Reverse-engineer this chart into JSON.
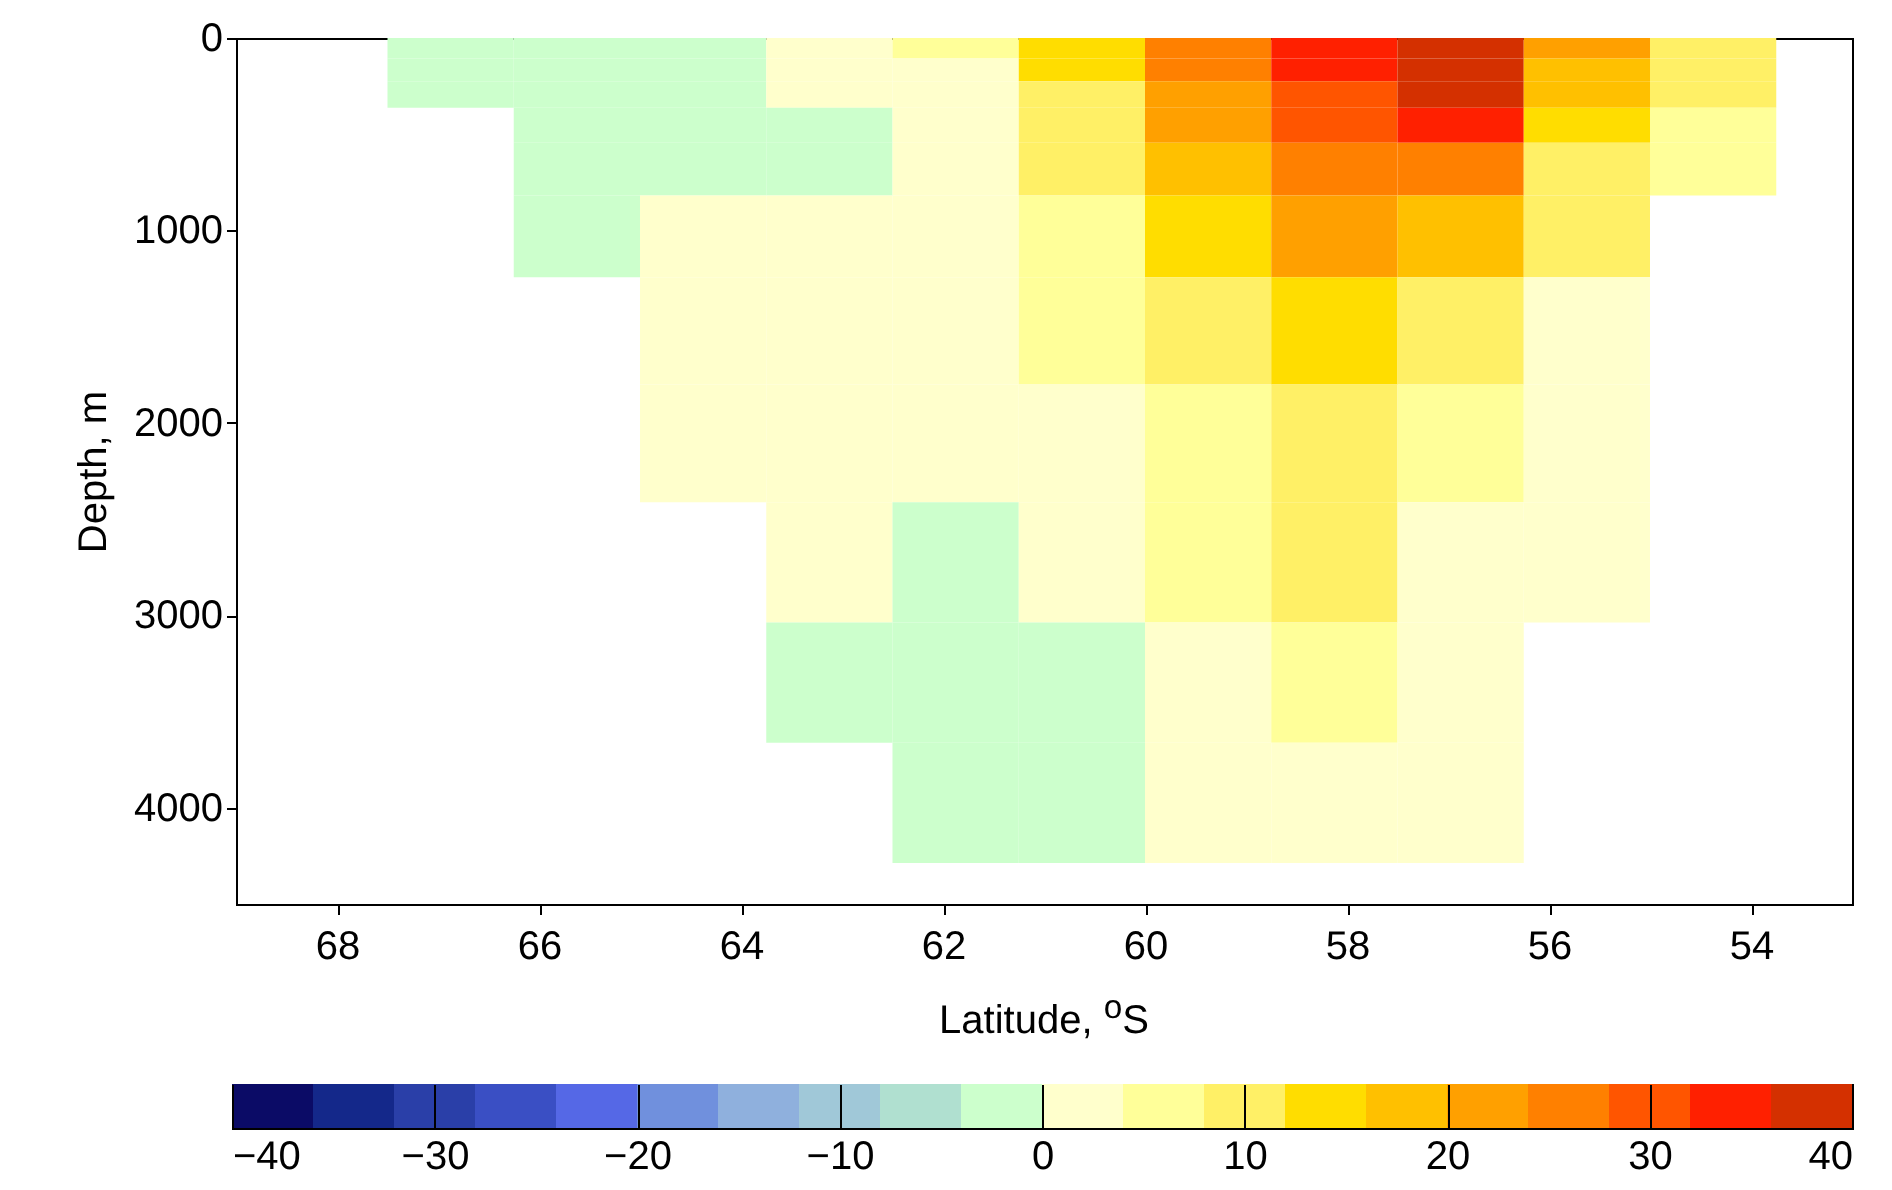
{
  "chart_data": {
    "type": "heatmap",
    "xlabel": "Latitude, $^{o}$S",
    "ylabel": "Depth, m",
    "x": [
      66.875,
      65.625,
      64.375,
      63.125,
      61.875,
      60.625,
      59.375,
      58.125,
      56.875,
      55.625,
      54.375
    ],
    "y": [
      50,
      162.5,
      287.5,
      437.5,
      650,
      987.5,
      1500,
      2100,
      2725,
      3350,
      3975
    ],
    "xlim": [
      69,
      53
    ],
    "xticks": [
      68,
      66,
      64,
      62,
      60,
      58,
      56,
      54
    ],
    "ylim": [
      4500,
      0
    ],
    "yticks": [
      0,
      1000,
      2000,
      3000,
      4000
    ],
    "cells": [
      [
        -2,
        -2,
        -2,
        2,
        6,
        14,
        26,
        34,
        38,
        22,
        10
      ],
      [
        -2,
        -2,
        -2,
        2,
        2,
        14,
        26,
        34,
        38,
        18,
        10
      ],
      [
        -2,
        -2,
        -2,
        2,
        2,
        10,
        22,
        30,
        38,
        18,
        10
      ],
      [
        null,
        -2,
        -2,
        -2,
        2,
        10,
        22,
        30,
        34,
        14,
        6
      ],
      [
        null,
        -2,
        -2,
        -2,
        2,
        10,
        18,
        26,
        26,
        10,
        6
      ],
      [
        null,
        -2,
        2,
        2,
        2,
        6,
        14,
        22,
        18,
        10,
        null
      ],
      [
        null,
        null,
        2,
        2,
        2,
        6,
        10,
        14,
        10,
        2,
        null
      ],
      [
        null,
        null,
        2,
        2,
        2,
        2,
        6,
        10,
        6,
        2,
        null
      ],
      [
        null,
        null,
        null,
        2,
        -2,
        2,
        6,
        10,
        2,
        2,
        null
      ],
      [
        null,
        null,
        null,
        -2,
        -2,
        -2,
        2,
        6,
        2,
        null,
        null
      ],
      [
        null,
        null,
        null,
        null,
        -2,
        -2,
        2,
        2,
        2,
        null,
        null
      ]
    ],
    "clim": [
      -40,
      40
    ],
    "cticks": [
      -40,
      -30,
      -20,
      -10,
      0,
      10,
      20,
      30,
      40
    ],
    "colors": [
      "#0b0b66",
      "#14288a",
      "#2a3fa8",
      "#3a4fc4",
      "#5568e6",
      "#7090dd",
      "#8fb0dd",
      "#a0c8d8",
      "#b0e0d0",
      "#ccffcc",
      "#ffffcc",
      "#ffff99",
      "#fff066",
      "#ffdd00",
      "#ffc000",
      "#ffa000",
      "#ff8000",
      "#ff5500",
      "#ff2000",
      "#d43000"
    ]
  }
}
